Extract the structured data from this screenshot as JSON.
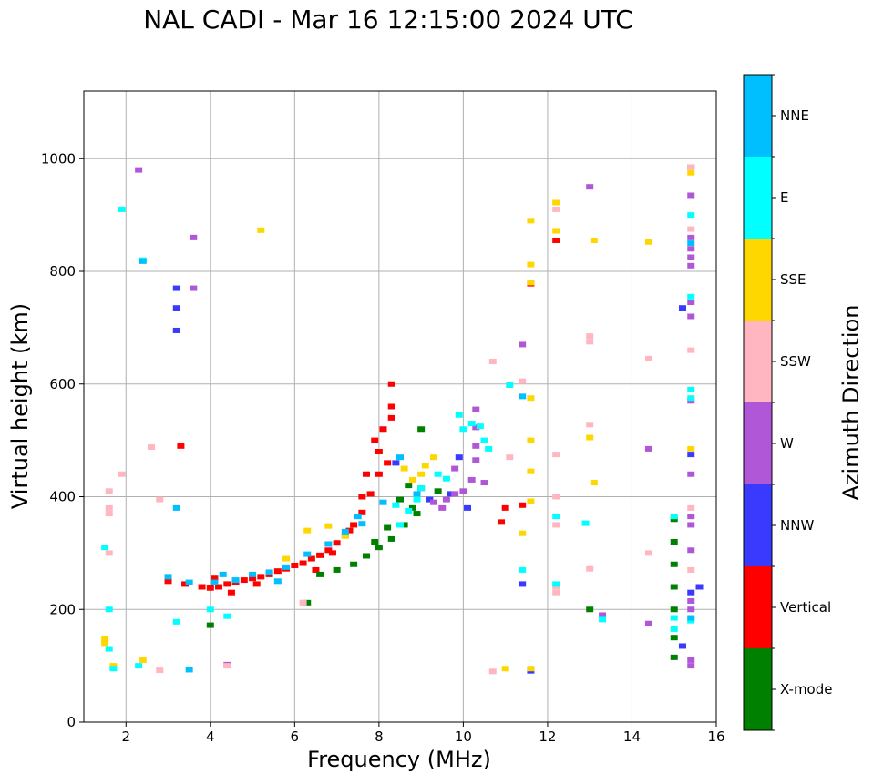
{
  "chart_data": {
    "type": "scatter",
    "title": "NAL CADI - Mar 16 12:15:00 2024 UTC",
    "xlabel": "Frequency (MHz)",
    "ylabel": "Virtual height (km)",
    "xlim": [
      1,
      16
    ],
    "ylim": [
      0,
      1120
    ],
    "xticks": [
      2,
      4,
      6,
      8,
      10,
      12,
      14,
      16
    ],
    "yticks": [
      0,
      200,
      400,
      600,
      800,
      1000
    ],
    "grid": true,
    "colorbar": {
      "label": "Azimuth Direction",
      "position": "right",
      "categories": [
        {
          "name": "X-mode",
          "color": "#008000"
        },
        {
          "name": "Vertical",
          "color": "#ff0000"
        },
        {
          "name": "NNW",
          "color": "#3a3aff"
        },
        {
          "name": "W",
          "color": "#b057d8"
        },
        {
          "name": "SSW",
          "color": "#ffb6c1"
        },
        {
          "name": "SSE",
          "color": "#ffd700"
        },
        {
          "name": "E",
          "color": "#00ffff"
        },
        {
          "name": "NNE",
          "color": "#00bfff"
        }
      ]
    },
    "series": [
      {
        "name": "Vertical",
        "points": [
          [
            3.0,
            250
          ],
          [
            3.4,
            245
          ],
          [
            3.8,
            240
          ],
          [
            4.0,
            238
          ],
          [
            4.2,
            240
          ],
          [
            4.4,
            245
          ],
          [
            4.6,
            248
          ],
          [
            4.8,
            252
          ],
          [
            5.0,
            255
          ],
          [
            5.2,
            258
          ],
          [
            5.4,
            262
          ],
          [
            5.6,
            268
          ],
          [
            5.8,
            272
          ],
          [
            6.0,
            278
          ],
          [
            6.2,
            282
          ],
          [
            6.4,
            290
          ],
          [
            6.6,
            296
          ],
          [
            6.8,
            305
          ],
          [
            7.0,
            318
          ],
          [
            7.2,
            332
          ],
          [
            7.4,
            350
          ],
          [
            7.6,
            372
          ],
          [
            7.8,
            405
          ],
          [
            8.0,
            440
          ],
          [
            8.2,
            460
          ],
          [
            7.9,
            500
          ],
          [
            8.1,
            520
          ],
          [
            8.3,
            560
          ],
          [
            8.3,
            600
          ],
          [
            7.6,
            400
          ],
          [
            7.3,
            340
          ],
          [
            6.9,
            300
          ],
          [
            5.1,
            245
          ],
          [
            4.1,
            255
          ],
          [
            4.5,
            230
          ],
          [
            6.5,
            270
          ],
          [
            7.7,
            440
          ],
          [
            8.0,
            480
          ],
          [
            8.3,
            540
          ],
          [
            11.0,
            380
          ],
          [
            11.4,
            385
          ],
          [
            12.2,
            855
          ],
          [
            11.6,
            778
          ],
          [
            10.9,
            355
          ],
          [
            3.3,
            490
          ]
        ]
      },
      {
        "name": "X-mode",
        "points": [
          [
            4.0,
            172
          ],
          [
            6.3,
            212
          ],
          [
            6.6,
            262
          ],
          [
            7.0,
            270
          ],
          [
            7.4,
            280
          ],
          [
            7.7,
            295
          ],
          [
            8.0,
            310
          ],
          [
            8.3,
            325
          ],
          [
            8.6,
            350
          ],
          [
            8.8,
            380
          ],
          [
            9.0,
            415
          ],
          [
            9.0,
            520
          ],
          [
            8.7,
            420
          ],
          [
            8.5,
            395
          ],
          [
            9.4,
            410
          ],
          [
            8.9,
            370
          ],
          [
            15.0,
            115
          ],
          [
            15.0,
            150
          ],
          [
            15.0,
            200
          ],
          [
            15.0,
            240
          ],
          [
            15.0,
            280
          ],
          [
            15.0,
            320
          ],
          [
            15.0,
            360
          ],
          [
            13.0,
            200
          ],
          [
            7.9,
            320
          ],
          [
            8.2,
            345
          ]
        ]
      },
      {
        "name": "NNW",
        "points": [
          [
            3.2,
            770
          ],
          [
            3.2,
            735
          ],
          [
            3.2,
            695
          ],
          [
            8.4,
            460
          ],
          [
            9.2,
            395
          ],
          [
            9.7,
            405
          ],
          [
            9.9,
            470
          ],
          [
            10.1,
            380
          ],
          [
            11.4,
            245
          ],
          [
            15.2,
            135
          ],
          [
            15.2,
            735
          ],
          [
            15.4,
            475
          ],
          [
            15.4,
            230
          ],
          [
            15.6,
            240
          ],
          [
            11.6,
            91
          ]
        ]
      },
      {
        "name": "W",
        "points": [
          [
            2.3,
            980
          ],
          [
            3.6,
            860
          ],
          [
            3.6,
            770
          ],
          [
            9.3,
            390
          ],
          [
            9.6,
            395
          ],
          [
            9.8,
            405
          ],
          [
            10.0,
            410
          ],
          [
            10.2,
            430
          ],
          [
            10.3,
            465
          ],
          [
            10.3,
            490
          ],
          [
            10.3,
            523
          ],
          [
            9.8,
            450
          ],
          [
            9.5,
            380
          ],
          [
            10.3,
            555
          ],
          [
            10.5,
            425
          ],
          [
            13.0,
            950
          ],
          [
            13.3,
            190
          ],
          [
            14.4,
            485
          ],
          [
            14.4,
            175
          ],
          [
            11.4,
            670
          ],
          [
            15.4,
            985
          ],
          [
            15.4,
            935
          ],
          [
            15.4,
            860
          ],
          [
            15.4,
            840
          ],
          [
            15.4,
            825
          ],
          [
            15.4,
            810
          ],
          [
            15.4,
            745
          ],
          [
            15.4,
            720
          ],
          [
            15.4,
            570
          ],
          [
            15.4,
            440
          ],
          [
            15.4,
            365
          ],
          [
            15.4,
            350
          ],
          [
            15.4,
            305
          ],
          [
            15.4,
            215
          ],
          [
            15.4,
            200
          ],
          [
            15.4,
            110
          ],
          [
            15.4,
            100
          ],
          [
            4.4,
            102
          ]
        ]
      },
      {
        "name": "SSW",
        "points": [
          [
            1.6,
            380
          ],
          [
            1.6,
            370
          ],
          [
            1.6,
            300
          ],
          [
            1.6,
            410
          ],
          [
            1.9,
            440
          ],
          [
            2.6,
            488
          ],
          [
            2.8,
            92
          ],
          [
            2.8,
            395
          ],
          [
            6.2,
            212
          ],
          [
            10.7,
            640
          ],
          [
            11.1,
            470
          ],
          [
            11.4,
            605
          ],
          [
            12.2,
            910
          ],
          [
            12.2,
            475
          ],
          [
            12.2,
            400
          ],
          [
            12.2,
            350
          ],
          [
            12.2,
            240
          ],
          [
            12.2,
            230
          ],
          [
            13.0,
            685
          ],
          [
            13.0,
            675
          ],
          [
            13.0,
            528
          ],
          [
            13.0,
            272
          ],
          [
            14.4,
            645
          ],
          [
            14.4,
            300
          ],
          [
            15.4,
            985
          ],
          [
            15.4,
            875
          ],
          [
            15.4,
            660
          ],
          [
            15.4,
            270
          ],
          [
            10.7,
            90
          ],
          [
            4.4,
            100
          ],
          [
            15.4,
            380
          ]
        ]
      },
      {
        "name": "SSE",
        "points": [
          [
            1.5,
            148
          ],
          [
            1.5,
            140
          ],
          [
            1.7,
            100
          ],
          [
            5.2,
            873
          ],
          [
            5.8,
            290
          ],
          [
            6.3,
            340
          ],
          [
            6.8,
            348
          ],
          [
            7.2,
            330
          ],
          [
            8.6,
            450
          ],
          [
            8.8,
            430
          ],
          [
            9.0,
            440
          ],
          [
            9.1,
            455
          ],
          [
            9.3,
            470
          ],
          [
            11.6,
            890
          ],
          [
            11.6,
            812
          ],
          [
            11.6,
            780
          ],
          [
            11.6,
            575
          ],
          [
            11.6,
            500
          ],
          [
            11.6,
            445
          ],
          [
            11.6,
            392
          ],
          [
            11.4,
            335
          ],
          [
            12.2,
            922
          ],
          [
            12.2,
            872
          ],
          [
            13.0,
            505
          ],
          [
            13.1,
            855
          ],
          [
            13.1,
            425
          ],
          [
            14.4,
            852
          ],
          [
            15.4,
            975
          ],
          [
            15.4,
            485
          ],
          [
            11.0,
            95
          ],
          [
            11.6,
            95
          ],
          [
            2.4,
            110
          ]
        ]
      },
      {
        "name": "E",
        "points": [
          [
            1.9,
            910
          ],
          [
            2.4,
            820
          ],
          [
            1.5,
            310
          ],
          [
            1.6,
            200
          ],
          [
            1.6,
            130
          ],
          [
            1.7,
            95
          ],
          [
            2.3,
            100
          ],
          [
            3.2,
            178
          ],
          [
            4.0,
            200
          ],
          [
            4.4,
            188
          ],
          [
            8.5,
            350
          ],
          [
            8.7,
            375
          ],
          [
            8.9,
            395
          ],
          [
            9.0,
            415
          ],
          [
            9.6,
            432
          ],
          [
            10.0,
            520
          ],
          [
            10.2,
            530
          ],
          [
            10.4,
            525
          ],
          [
            9.9,
            545
          ],
          [
            10.5,
            500
          ],
          [
            10.6,
            485
          ],
          [
            11.1,
            598
          ],
          [
            11.4,
            270
          ],
          [
            12.2,
            365
          ],
          [
            12.2,
            245
          ],
          [
            12.9,
            353
          ],
          [
            13.3,
            182
          ],
          [
            15.4,
            900
          ],
          [
            15.4,
            755
          ],
          [
            15.4,
            590
          ],
          [
            15.4,
            575
          ],
          [
            15.4,
            180
          ],
          [
            15.0,
            365
          ],
          [
            15.0,
            185
          ],
          [
            15.0,
            165
          ],
          [
            9.4,
            440
          ],
          [
            8.4,
            385
          ]
        ]
      },
      {
        "name": "NNE",
        "points": [
          [
            2.4,
            818
          ],
          [
            3.2,
            380
          ],
          [
            3.0,
            258
          ],
          [
            3.5,
            248
          ],
          [
            3.5,
            93
          ],
          [
            4.1,
            248
          ],
          [
            4.3,
            262
          ],
          [
            4.6,
            252
          ],
          [
            5.0,
            262
          ],
          [
            5.4,
            266
          ],
          [
            5.8,
            275
          ],
          [
            6.3,
            298
          ],
          [
            6.8,
            316
          ],
          [
            7.2,
            338
          ],
          [
            7.6,
            352
          ],
          [
            8.1,
            390
          ],
          [
            8.5,
            470
          ],
          [
            8.9,
            405
          ],
          [
            11.4,
            578
          ],
          [
            15.4,
            850
          ],
          [
            15.4,
            185
          ],
          [
            5.6,
            250
          ],
          [
            7.5,
            365
          ]
        ]
      }
    ]
  }
}
